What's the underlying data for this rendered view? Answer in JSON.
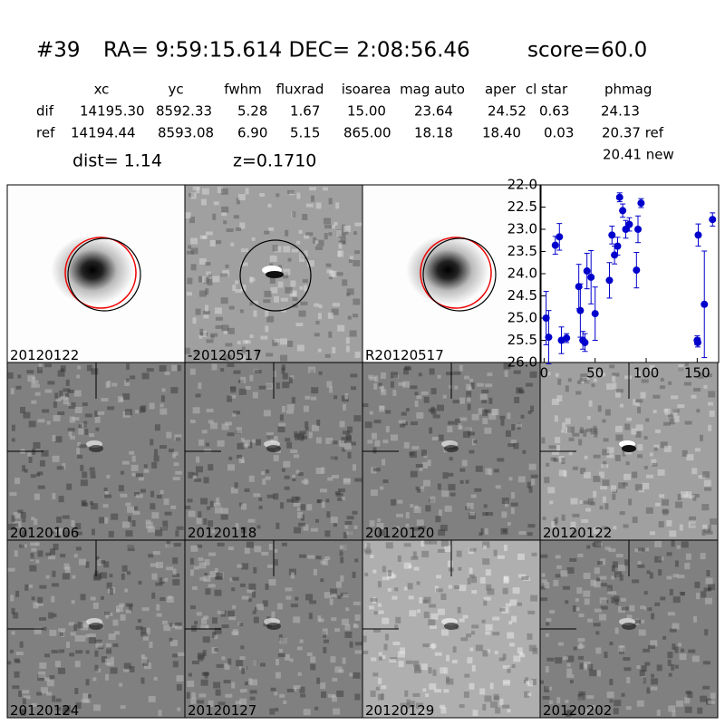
{
  "header": {
    "id": "#39",
    "coords": "RA= 9:59:15.614 DEC= 2:08:56.46",
    "score": "score=60.0"
  },
  "table": {
    "columns": [
      "xc",
      "yc",
      "fwhm",
      "fluxrad",
      "isoarea",
      "mag auto",
      "aper",
      "cl star",
      "phmag"
    ],
    "rows": [
      [
        "dif",
        "14195.30",
        "8592.33",
        "5.28",
        "1.67",
        "15.00",
        "23.64",
        "24.52",
        "0.63",
        "24.13"
      ],
      [
        "ref",
        "14194.44",
        "8593.08",
        "6.90",
        "5.15",
        "865.00",
        "18.18",
        "18.40",
        "0.03",
        "20.37 ref"
      ]
    ],
    "extra": "20.41 new"
  },
  "dist": "dist=  1.14",
  "z": "z=0.1710",
  "stamps": [
    {
      "label": "20120122",
      "color": "#000000"
    },
    {
      "label": "-20120517",
      "color": "#000000"
    },
    {
      "label": "R20120517",
      "color": "#000000"
    },
    {
      "label": "20120106",
      "color": "#000000"
    },
    {
      "label": "20120118",
      "color": "#000000"
    },
    {
      "label": "20120120",
      "color": "#000000"
    },
    {
      "label": "20120122",
      "color": "#ff0000"
    },
    {
      "label": "20120124",
      "color": "#000000"
    },
    {
      "label": "20120127",
      "color": "#000000"
    },
    {
      "label": "20120129",
      "color": "#000000"
    },
    {
      "label": "20120202",
      "color": "#000000"
    }
  ],
  "chart_data": {
    "type": "scatter",
    "color": "#0000cc",
    "x": [
      2,
      4.5,
      11,
      15,
      17,
      22,
      34,
      35.5,
      38,
      40,
      42,
      46,
      50,
      64,
      66.5,
      69,
      72,
      74,
      77,
      80,
      83.5,
      90.5,
      92,
      95,
      150,
      150.5,
      151,
      157,
      165
    ],
    "values": [
      25.0,
      25.43,
      23.36,
      23.17,
      25.5,
      25.45,
      24.29,
      24.83,
      25.5,
      25.55,
      23.94,
      24.08,
      24.9,
      24.15,
      23.13,
      23.58,
      23.38,
      22.28,
      22.58,
      23.0,
      22.89,
      23.92,
      23.0,
      22.41,
      25.5,
      25.55,
      23.13,
      24.69,
      22.78
    ],
    "errors": [
      0.6,
      0.6,
      0.2,
      0.3,
      0.3,
      0.1,
      0.5,
      0.6,
      0.2,
      0.2,
      0.4,
      0.6,
      0.6,
      0.4,
      0.2,
      0.2,
      0.2,
      0.1,
      0.15,
      0.2,
      0.15,
      0.4,
      0.3,
      0.1,
      0.1,
      0.1,
      0.25,
      1.2,
      0.15
    ],
    "xlim": [
      -3,
      171
    ],
    "ylim": [
      26,
      22
    ],
    "xticks": [
      0,
      50,
      100,
      150
    ],
    "yticks": [
      {
        "value": 22,
        "label": "22.0"
      },
      {
        "value": 22.5,
        "label": "22.5"
      },
      {
        "value": 23,
        "label": "23.0"
      },
      {
        "value": 23.5,
        "label": "23.5"
      },
      {
        "value": 24,
        "label": "24.0"
      },
      {
        "value": 24.5,
        "label": "24.5"
      },
      {
        "value": 25,
        "label": "25.0"
      },
      {
        "value": 25.5,
        "label": "25.5"
      },
      {
        "value": 26,
        "label": "26.0"
      }
    ]
  }
}
